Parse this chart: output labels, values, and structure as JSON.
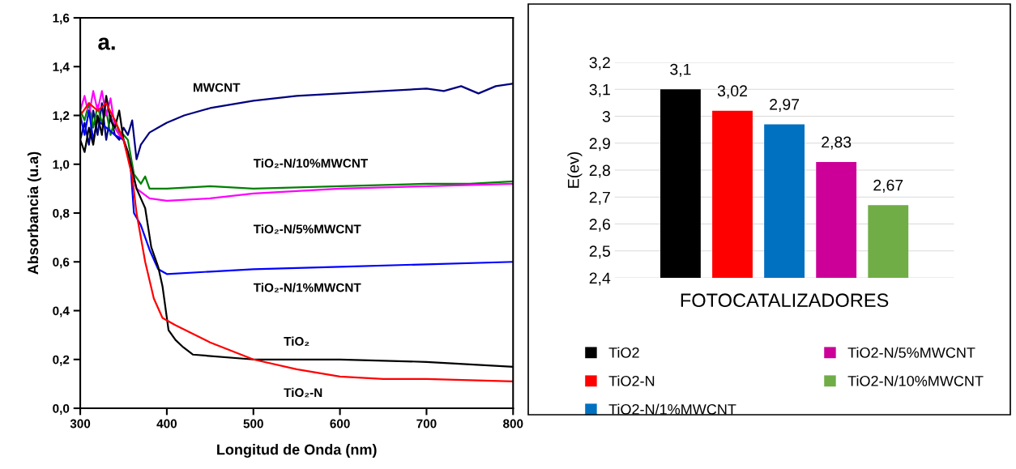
{
  "chart_data": [
    {
      "type": "line",
      "xlabel": "Longitud de Onda (nm)",
      "ylabel": "Absorbancia (u.a)",
      "annotations": [
        "a."
      ],
      "xlim": [
        300,
        800
      ],
      "xticks": [
        300,
        400,
        500,
        600,
        700,
        800
      ],
      "ylim": [
        0,
        1.6
      ],
      "yticks": [
        {
          "value": 0,
          "label": "0,0"
        },
        {
          "value": 0.2,
          "label": "0,2"
        },
        {
          "value": 0.4,
          "label": "0,4"
        },
        {
          "value": 0.6,
          "label": "0,6"
        },
        {
          "value": 0.8,
          "label": "0,8"
        },
        {
          "value": 1.0,
          "label": "1,0"
        },
        {
          "value": 1.2,
          "label": "1,2"
        },
        {
          "value": 1.4,
          "label": "1,4"
        },
        {
          "value": 1.6,
          "label": "1,6"
        }
      ],
      "grid": false,
      "legend": false,
      "series": [
        {
          "name": "MWCNT",
          "color": "#000080",
          "x": [
            300,
            305,
            310,
            315,
            320,
            325,
            330,
            335,
            340,
            345,
            350,
            355,
            360,
            365,
            370,
            380,
            390,
            400,
            420,
            450,
            500,
            550,
            600,
            650,
            700,
            720,
            740,
            760,
            780,
            800
          ],
          "values": [
            1.1,
            1.17,
            1.08,
            1.22,
            1.12,
            1.25,
            1.1,
            1.2,
            1.12,
            1.1,
            1.15,
            1.12,
            1.18,
            1.02,
            1.08,
            1.13,
            1.15,
            1.17,
            1.2,
            1.23,
            1.26,
            1.28,
            1.29,
            1.3,
            1.31,
            1.3,
            1.32,
            1.29,
            1.32,
            1.33
          ]
        },
        {
          "name": "TiO₂-N/10%MWCNT",
          "color": "#008000",
          "x": [
            300,
            305,
            310,
            315,
            320,
            325,
            330,
            335,
            340,
            345,
            350,
            355,
            362,
            370,
            375,
            380,
            400,
            450,
            500,
            600,
            700,
            750,
            800
          ],
          "values": [
            1.22,
            1.18,
            1.25,
            1.15,
            1.24,
            1.17,
            1.22,
            1.12,
            1.18,
            1.13,
            1.12,
            1.1,
            0.96,
            0.92,
            0.95,
            0.9,
            0.9,
            0.91,
            0.9,
            0.91,
            0.92,
            0.92,
            0.93
          ]
        },
        {
          "name": "TiO₂-N/5%MWCNT",
          "color": "#ff00ff",
          "x": [
            300,
            305,
            310,
            315,
            320,
            325,
            330,
            335,
            340,
            345,
            350,
            355,
            365,
            380,
            400,
            450,
            500,
            600,
            700,
            800
          ],
          "values": [
            1.22,
            1.28,
            1.2,
            1.3,
            1.22,
            1.3,
            1.2,
            1.27,
            1.15,
            1.12,
            1.1,
            1.05,
            0.9,
            0.86,
            0.85,
            0.86,
            0.88,
            0.9,
            0.91,
            0.92
          ]
        },
        {
          "name": "TiO₂-N/1%MWCNT",
          "color": "#0000ff",
          "x": [
            300,
            305,
            310,
            315,
            320,
            330,
            340,
            350,
            358,
            362,
            370,
            380,
            390,
            400,
            450,
            500,
            600,
            700,
            800
          ],
          "values": [
            1.2,
            1.12,
            1.22,
            1.1,
            1.18,
            1.15,
            1.12,
            1.1,
            1.0,
            0.8,
            0.75,
            0.65,
            0.57,
            0.55,
            0.56,
            0.57,
            0.58,
            0.59,
            0.6
          ]
        },
        {
          "name": "TiO₂",
          "color": "#000000",
          "x": [
            300,
            305,
            310,
            315,
            320,
            325,
            330,
            335,
            340,
            345,
            350,
            355,
            365,
            375,
            382,
            390,
            395,
            402,
            410,
            419,
            430,
            500,
            600,
            700,
            800
          ],
          "values": [
            1.1,
            1.05,
            1.15,
            1.08,
            1.2,
            1.12,
            1.28,
            1.18,
            1.15,
            1.22,
            1.1,
            1.05,
            0.9,
            0.82,
            0.66,
            0.58,
            0.5,
            0.32,
            0.28,
            0.25,
            0.22,
            0.2,
            0.2,
            0.19,
            0.17
          ]
        },
        {
          "name": "TiO₂-N",
          "color": "#ff0000",
          "x": [
            300,
            310,
            320,
            330,
            340,
            350,
            360,
            365,
            375,
            385,
            395,
            410,
            450,
            500,
            550,
            600,
            650,
            700,
            800
          ],
          "values": [
            1.2,
            1.25,
            1.22,
            1.25,
            1.18,
            1.1,
            0.95,
            0.8,
            0.6,
            0.45,
            0.37,
            0.34,
            0.27,
            0.2,
            0.16,
            0.13,
            0.12,
            0.12,
            0.11
          ]
        }
      ]
    },
    {
      "type": "bar",
      "xlabel": "FOTOCATALIZADORES",
      "ylabel": "E(ev)",
      "categories": [
        null
      ],
      "series": [
        {
          "name": "TiO2",
          "color": "#000000",
          "values": [
            3.1
          ],
          "value_labels": [
            "3,1"
          ]
        },
        {
          "name": "TiO2-N",
          "color": "#ff0000",
          "values": [
            3.02
          ],
          "value_labels": [
            "3,02"
          ]
        },
        {
          "name": "TiO2-N/1%MWCNT",
          "color": "#0070c0",
          "values": [
            2.97
          ],
          "value_labels": [
            "2,97"
          ]
        },
        {
          "name": "TiO2-N/5%MWCNT",
          "color": "#cc0099",
          "values": [
            2.83
          ],
          "value_labels": [
            "2,83"
          ]
        },
        {
          "name": "TiO2-N/10%MWCNT",
          "color": "#70ad47",
          "values": [
            2.67
          ],
          "value_labels": [
            "2,67"
          ]
        }
      ],
      "ylim": [
        2.4,
        3.2
      ],
      "yticks": [
        {
          "value": 2.4,
          "label": "2,4"
        },
        {
          "value": 2.5,
          "label": "2,5"
        },
        {
          "value": 2.6,
          "label": "2,6"
        },
        {
          "value": 2.7,
          "label": "2,7"
        },
        {
          "value": 2.8,
          "label": "2,8"
        },
        {
          "value": 2.9,
          "label": "2,9"
        },
        {
          "value": 3.0,
          "label": "3"
        },
        {
          "value": 3.1,
          "label": "3,1"
        },
        {
          "value": 3.2,
          "label": "3,2"
        }
      ],
      "grid": "y",
      "legend": "bottom",
      "tick_labels": "y"
    }
  ]
}
